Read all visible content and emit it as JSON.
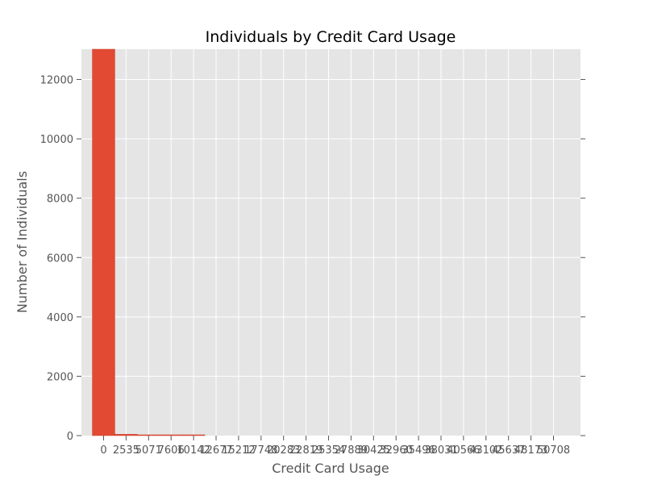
{
  "chart_data": {
    "type": "bar",
    "title": "Individuals by Credit Card Usage",
    "xlabel": "Credit Card Usage",
    "ylabel": "Number of Individuals",
    "categories": [
      "0",
      "2535",
      "5071",
      "7606",
      "10142",
      "12677",
      "15212",
      "17748",
      "20283",
      "22819",
      "25354",
      "27889",
      "30425",
      "32960",
      "35496",
      "38031",
      "40566",
      "43102",
      "45637",
      "48173",
      "50708"
    ],
    "values": [
      13020,
      45,
      4,
      1,
      1,
      0,
      0,
      0,
      0,
      0,
      0,
      0,
      0,
      0,
      0,
      0,
      0,
      0,
      0,
      0,
      0
    ],
    "ylim": [
      0,
      13020
    ],
    "yticks": [
      0,
      2000,
      4000,
      6000,
      8000,
      10000,
      12000
    ],
    "grid": true,
    "colors": {
      "bar": "#E24A33",
      "plot_bg": "#E5E5E5",
      "grid": "#FFFFFF",
      "tick_text": "#555555",
      "title_text": "#000000"
    }
  }
}
